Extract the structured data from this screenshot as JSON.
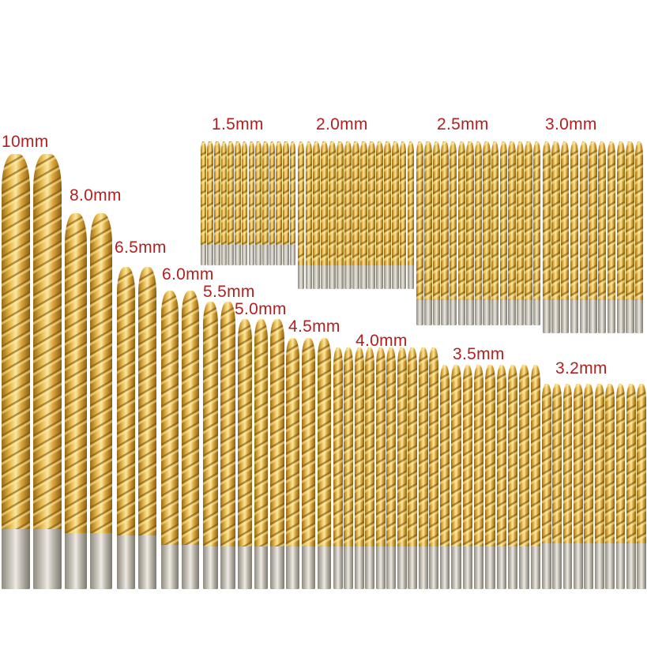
{
  "image": {
    "subject": "titanium coated twist drill bit set",
    "colors": {
      "label": "#b3201f",
      "bit": "#e6b94c",
      "shank": "#cfcbc2",
      "background": "#ffffff"
    }
  },
  "labels": [
    "10mm",
    "8.0mm",
    "6.5mm",
    "6.0mm",
    "5.5mm",
    "5.0mm",
    "4.5mm",
    "4.0mm",
    "3.5mm",
    "3.2mm",
    "1.5mm",
    "2.0mm",
    "2.5mm",
    "3.0mm"
  ]
}
